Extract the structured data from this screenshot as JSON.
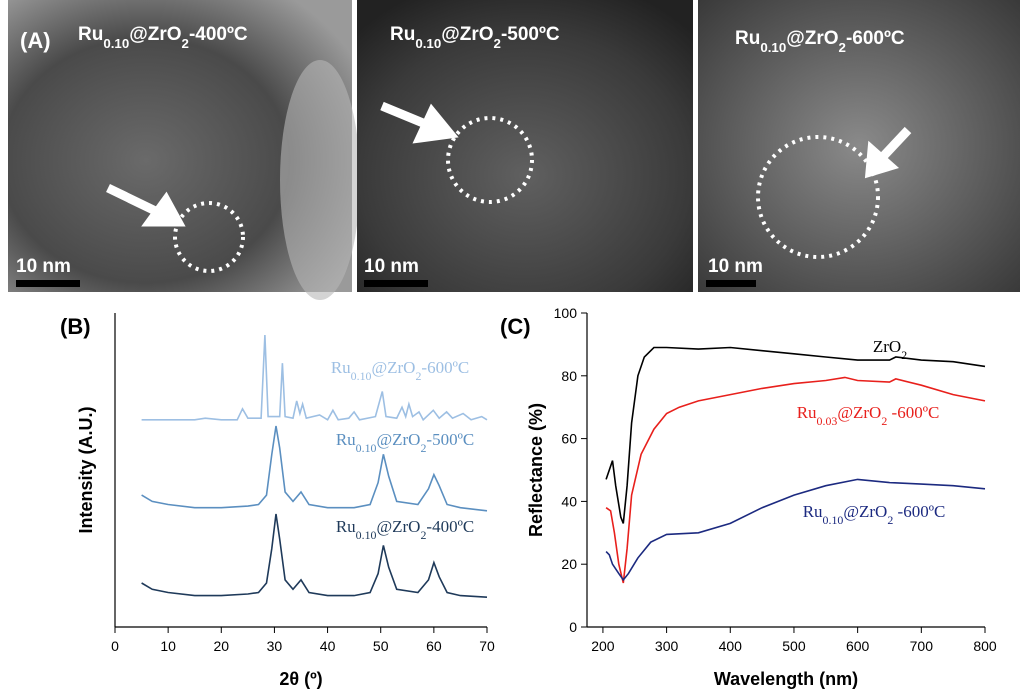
{
  "panel_labels": [
    "(A)",
    "(B)",
    "(C)"
  ],
  "tem_images": [
    {
      "label": [
        "Ru",
        "0.10",
        "@ZrO",
        "2",
        "-400ºC"
      ],
      "scale_bar": "10 nm"
    },
    {
      "label": [
        "Ru",
        "0.10",
        "@ZrO",
        "2",
        "-500ºC"
      ],
      "scale_bar": "10 nm"
    },
    {
      "label": [
        "Ru",
        "0.10",
        "@ZrO",
        "2",
        "-600ºC"
      ],
      "scale_bar": "10 nm"
    }
  ],
  "chart_data": [
    {
      "type": "line",
      "x_label": "2θ (º)",
      "y_label": "Intensity (A.U.)",
      "xlim": [
        0,
        70
      ],
      "xticks": [
        0,
        10,
        20,
        30,
        40,
        50,
        60,
        70
      ],
      "ylim": [
        0,
        100
      ],
      "series": [
        {
          "name": [
            "Ru",
            "0.10",
            "@ZrO",
            "2",
            "-600ºC"
          ],
          "color": "#9dbfe3",
          "x": [
            5,
            15,
            17,
            20,
            23,
            24,
            25,
            27.5,
            28.2,
            28.8,
            31,
            31.5,
            32,
            33.5,
            34.2,
            34.8,
            35.3,
            36,
            38.5,
            40,
            41,
            42,
            44,
            45,
            46,
            49,
            49.8,
            50.3,
            51,
            53,
            54,
            54.7,
            55.3,
            56,
            57.2,
            58,
            59.9,
            61,
            62.4,
            63.5,
            65.5,
            67,
            69,
            70
          ],
          "values": [
            66,
            66,
            66.5,
            66,
            66,
            69.5,
            66.5,
            66.5,
            93,
            67,
            67,
            84,
            67,
            66.5,
            72,
            68,
            71,
            66.5,
            67.5,
            66,
            69,
            66,
            66.5,
            68.5,
            66,
            67,
            72,
            75,
            67,
            66.5,
            70,
            67,
            71,
            67,
            68.5,
            66,
            69,
            66.5,
            68.5,
            66.5,
            68,
            66,
            67,
            66
          ]
        },
        {
          "name": [
            "Ru",
            "0.10",
            "@ZrO",
            "2",
            "-500ºC"
          ],
          "color": "#5b8fc0",
          "x": [
            5,
            7,
            10,
            15,
            20,
            25,
            27,
            28.5,
            29.5,
            30.3,
            31,
            32,
            33.5,
            35,
            36.5,
            40,
            45,
            48,
            49.5,
            50.5,
            51.5,
            53,
            57,
            59,
            60,
            61,
            62.5,
            65,
            70
          ],
          "values": [
            42,
            40,
            39,
            38,
            38,
            38.5,
            39,
            42,
            55,
            64,
            57,
            43,
            40,
            43,
            39,
            38,
            38,
            39,
            46,
            55,
            48,
            40,
            39,
            44,
            48.5,
            45,
            39,
            38,
            37
          ]
        },
        {
          "name": [
            "Ru",
            "0.10",
            "@ZrO",
            "2",
            "-400ºC"
          ],
          "color": "#1f3a5a",
          "x": [
            5,
            7,
            10,
            15,
            20,
            25,
            27,
            28.5,
            29.5,
            30.3,
            31,
            32,
            33.5,
            35,
            36.5,
            40,
            45,
            48,
            49.5,
            50.5,
            51.5,
            53,
            57,
            59,
            60,
            61,
            62.5,
            65,
            70
          ],
          "values": [
            14,
            12,
            11,
            10,
            10,
            10.5,
            11,
            14,
            25,
            36,
            28,
            15,
            12,
            15,
            11,
            10,
            10,
            11,
            17,
            26,
            19,
            12,
            11,
            15,
            20.5,
            16,
            11,
            10,
            9.5
          ]
        }
      ]
    },
    {
      "type": "line",
      "x_label": "Wavelength (nm)",
      "y_label": "Reflectance (%)",
      "xlim": [
        175,
        800
      ],
      "xticks": [
        200,
        300,
        400,
        500,
        600,
        700,
        800
      ],
      "ylim": [
        0,
        100
      ],
      "yticks": [
        0,
        20,
        40,
        60,
        80,
        100
      ],
      "series": [
        {
          "name": [
            "ZrO",
            "2"
          ],
          "color": "#000000",
          "x": [
            205,
            210,
            215,
            220,
            228,
            232,
            238,
            245,
            255,
            265,
            280,
            300,
            350,
            400,
            450,
            500,
            550,
            600,
            650,
            660,
            700,
            750,
            800
          ],
          "values": [
            47,
            50,
            53,
            45,
            35,
            33,
            45,
            65,
            80,
            86,
            89,
            89,
            88.5,
            89,
            88,
            87,
            86,
            85,
            85,
            86,
            85,
            84.5,
            83
          ]
        },
        {
          "name": [
            "Ru",
            "0.03",
            "@ZrO",
            "2",
            " -600ºC"
          ],
          "color": "#e8201c",
          "x": [
            205,
            212,
            218,
            225,
            232,
            238,
            245,
            260,
            280,
            300,
            320,
            350,
            400,
            450,
            500,
            550,
            580,
            600,
            650,
            660,
            700,
            750,
            800
          ],
          "values": [
            38,
            37,
            30,
            20,
            14,
            25,
            42,
            55,
            63,
            68,
            70,
            72,
            74,
            76,
            77.5,
            78.5,
            79.5,
            78.5,
            78,
            79,
            77,
            74,
            72
          ]
        },
        {
          "name": [
            "Ru",
            "0.10",
            "@ZrO",
            "2",
            " -600ºC"
          ],
          "color": "#1c2a80",
          "x": [
            205,
            210,
            215,
            225,
            232,
            240,
            255,
            275,
            300,
            350,
            400,
            450,
            500,
            550,
            600,
            650,
            700,
            750,
            800
          ],
          "values": [
            24,
            23,
            20,
            17,
            15,
            17,
            22,
            27,
            29.5,
            30,
            33,
            38,
            42,
            45,
            47,
            46,
            45.5,
            45,
            44
          ]
        }
      ]
    }
  ]
}
